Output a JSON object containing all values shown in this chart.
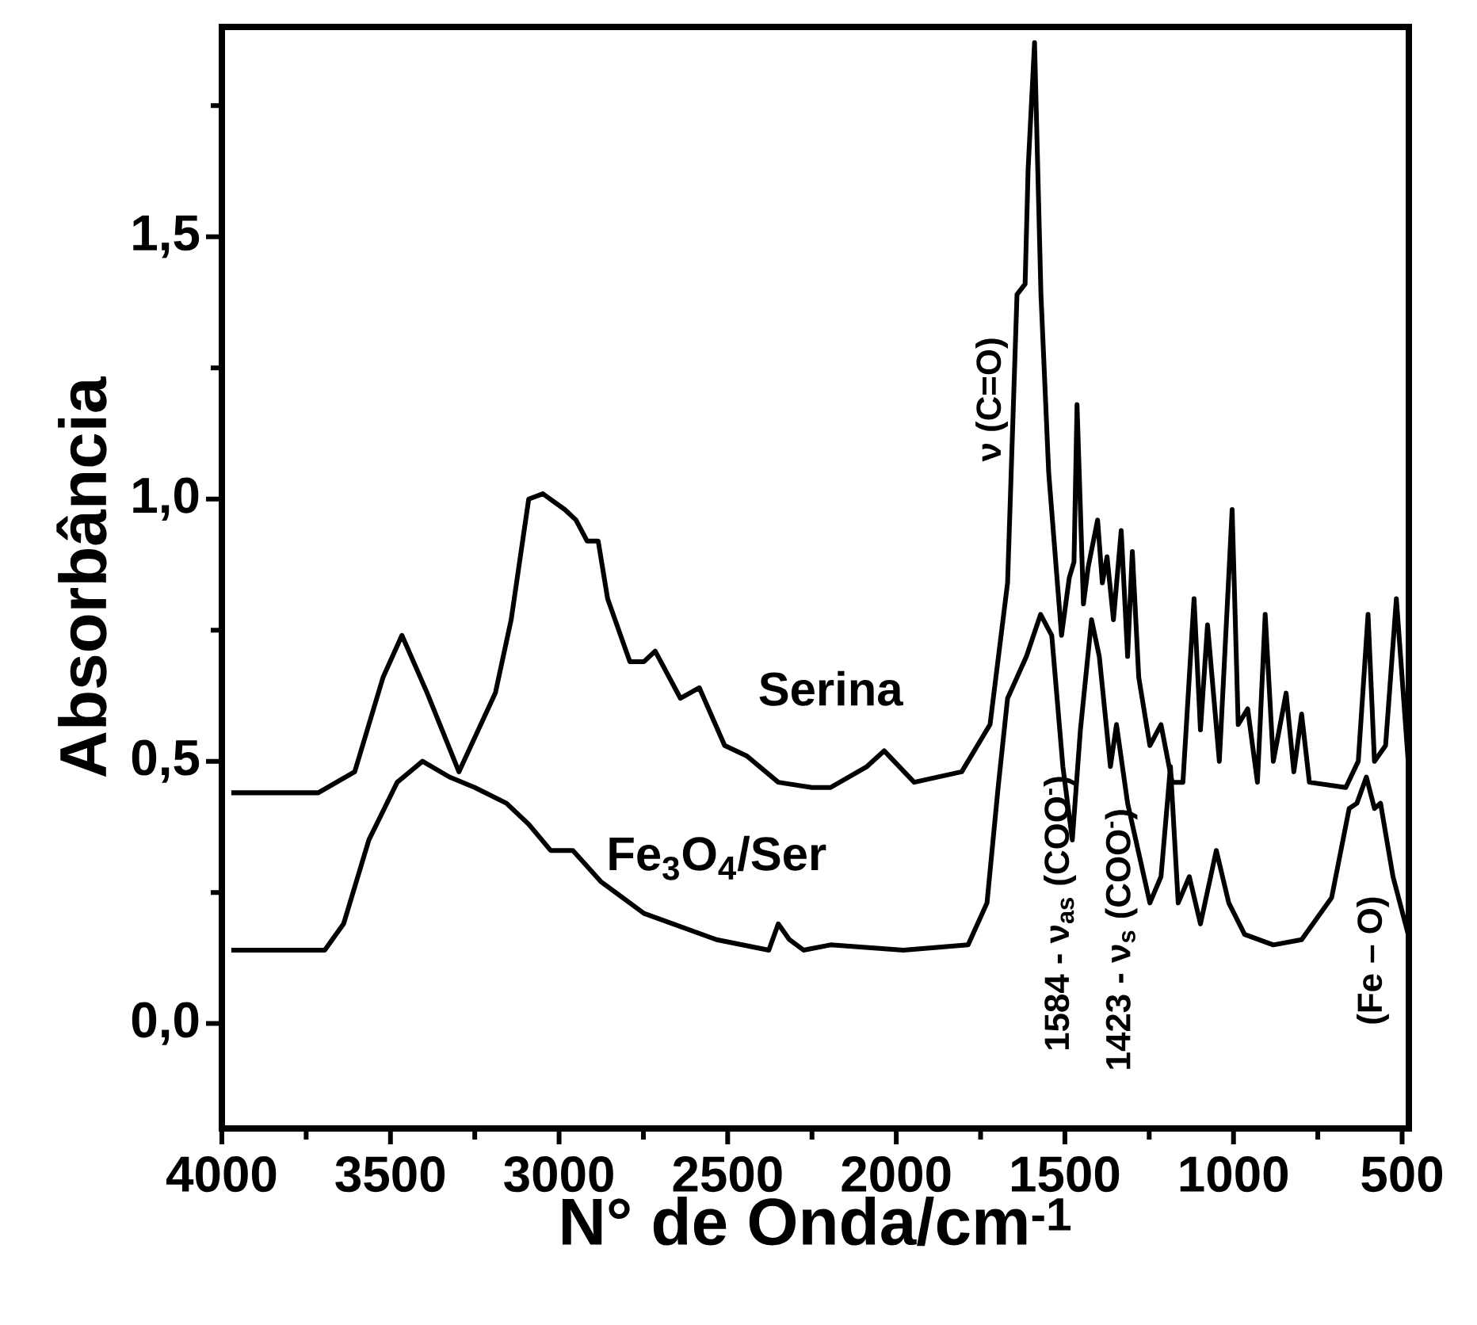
{
  "chart_data": {
    "type": "line",
    "xlabel": "N° de Onda/cm$^{-1}$",
    "ylabel": "Absorbância",
    "xlim": [
      4000,
      480
    ],
    "ylim": [
      -0.2,
      1.9
    ],
    "xticks": [
      4000,
      {
        "value": 3750,
        "label": null
      },
      3500,
      {
        "value": 3250,
        "label": null
      },
      3000,
      {
        "value": 2750,
        "label": null
      },
      2500,
      {
        "value": 2250,
        "label": null
      },
      2000,
      {
        "value": 1750,
        "label": null
      },
      1500,
      {
        "value": 1250,
        "label": null
      },
      1000,
      {
        "value": 750,
        "label": null
      },
      500
    ],
    "yticks": [
      {
        "value": 0.0,
        "label": "0,0"
      },
      {
        "value": 0.25,
        "label": null
      },
      {
        "value": 0.5,
        "label": "0,5"
      },
      {
        "value": 0.75,
        "label": null
      },
      {
        "value": 1.0,
        "label": "1,0"
      },
      {
        "value": 1.25,
        "label": null
      },
      {
        "value": 1.5,
        "label": "1,5"
      },
      {
        "value": 1.75,
        "label": null
      }
    ],
    "series": [
      {
        "name": "Serina",
        "color": "#000000",
        "x": [
          3972,
          3714,
          3606,
          3522,
          3466,
          3391,
          3297,
          3189,
          3142,
          3090,
          3048,
          2983,
          2950,
          2917,
          2884,
          2856,
          2790,
          2748,
          2715,
          2640,
          2584,
          2509,
          2443,
          2350,
          2250,
          2195,
          2087,
          2036,
          1947,
          1806,
          1722,
          1670,
          1642,
          1618,
          1609,
          1590,
          1571,
          1548,
          1510,
          1487,
          1473,
          1464,
          1445,
          1431,
          1403,
          1389,
          1375,
          1356,
          1333,
          1314,
          1300,
          1281,
          1248,
          1215,
          1182,
          1150,
          1117,
          1098,
          1077,
          1042,
          1004,
          986,
          958,
          929,
          906,
          882,
          844,
          821,
          798,
          775,
          667,
          630,
          601,
          582,
          549,
          517,
          482
        ],
        "values": [
          0.44,
          0.44,
          0.48,
          0.66,
          0.74,
          0.63,
          0.48,
          0.63,
          0.77,
          1.0,
          1.01,
          0.98,
          0.96,
          0.92,
          0.92,
          0.81,
          0.69,
          0.69,
          0.71,
          0.62,
          0.64,
          0.53,
          0.51,
          0.46,
          0.45,
          0.45,
          0.49,
          0.52,
          0.46,
          0.48,
          0.57,
          0.84,
          1.39,
          1.41,
          1.63,
          1.87,
          1.39,
          1.05,
          0.74,
          0.85,
          0.88,
          1.18,
          0.8,
          0.87,
          0.96,
          0.84,
          0.89,
          0.77,
          0.94,
          0.7,
          0.9,
          0.66,
          0.53,
          0.57,
          0.46,
          0.46,
          0.81,
          0.56,
          0.76,
          0.5,
          0.98,
          0.57,
          0.6,
          0.46,
          0.78,
          0.5,
          0.63,
          0.48,
          0.59,
          0.46,
          0.45,
          0.5,
          0.78,
          0.5,
          0.53,
          0.81,
          0.5
        ]
      },
      {
        "name": "Fe$_{3}$O$_{4}$/Ser",
        "color": "#000000",
        "x": [
          3972,
          3695,
          3639,
          3564,
          3480,
          3405,
          3325,
          3250,
          3156,
          3090,
          3025,
          2959,
          2875,
          2748,
          2533,
          2378,
          2350,
          2317,
          2275,
          2195,
          1979,
          1787,
          1731,
          1698,
          1670,
          1614,
          1572,
          1539,
          1506,
          1478,
          1454,
          1421,
          1398,
          1365,
          1347,
          1314,
          1248,
          1215,
          1187,
          1164,
          1131,
          1098,
          1051,
          1014,
          967,
          882,
          798,
          709,
          657,
          634,
          606,
          582,
          564,
          527,
          482
        ],
        "values": [
          0.14,
          0.14,
          0.19,
          0.35,
          0.46,
          0.5,
          0.47,
          0.45,
          0.42,
          0.38,
          0.33,
          0.33,
          0.27,
          0.21,
          0.16,
          0.14,
          0.19,
          0.16,
          0.14,
          0.15,
          0.14,
          0.15,
          0.23,
          0.45,
          0.62,
          0.7,
          0.78,
          0.74,
          0.49,
          0.35,
          0.56,
          0.77,
          0.7,
          0.49,
          0.57,
          0.42,
          0.23,
          0.28,
          0.49,
          0.23,
          0.28,
          0.19,
          0.33,
          0.23,
          0.17,
          0.15,
          0.16,
          0.24,
          0.41,
          0.42,
          0.47,
          0.41,
          0.42,
          0.28,
          0.17
        ]
      }
    ],
    "annotations": [
      "ν (C=O)",
      "1584 - ν$_{as}$ (COO$^{-}$)",
      "1423 - ν$_{s}$ (COO$^{-}$)",
      "(Fe – O)"
    ]
  }
}
